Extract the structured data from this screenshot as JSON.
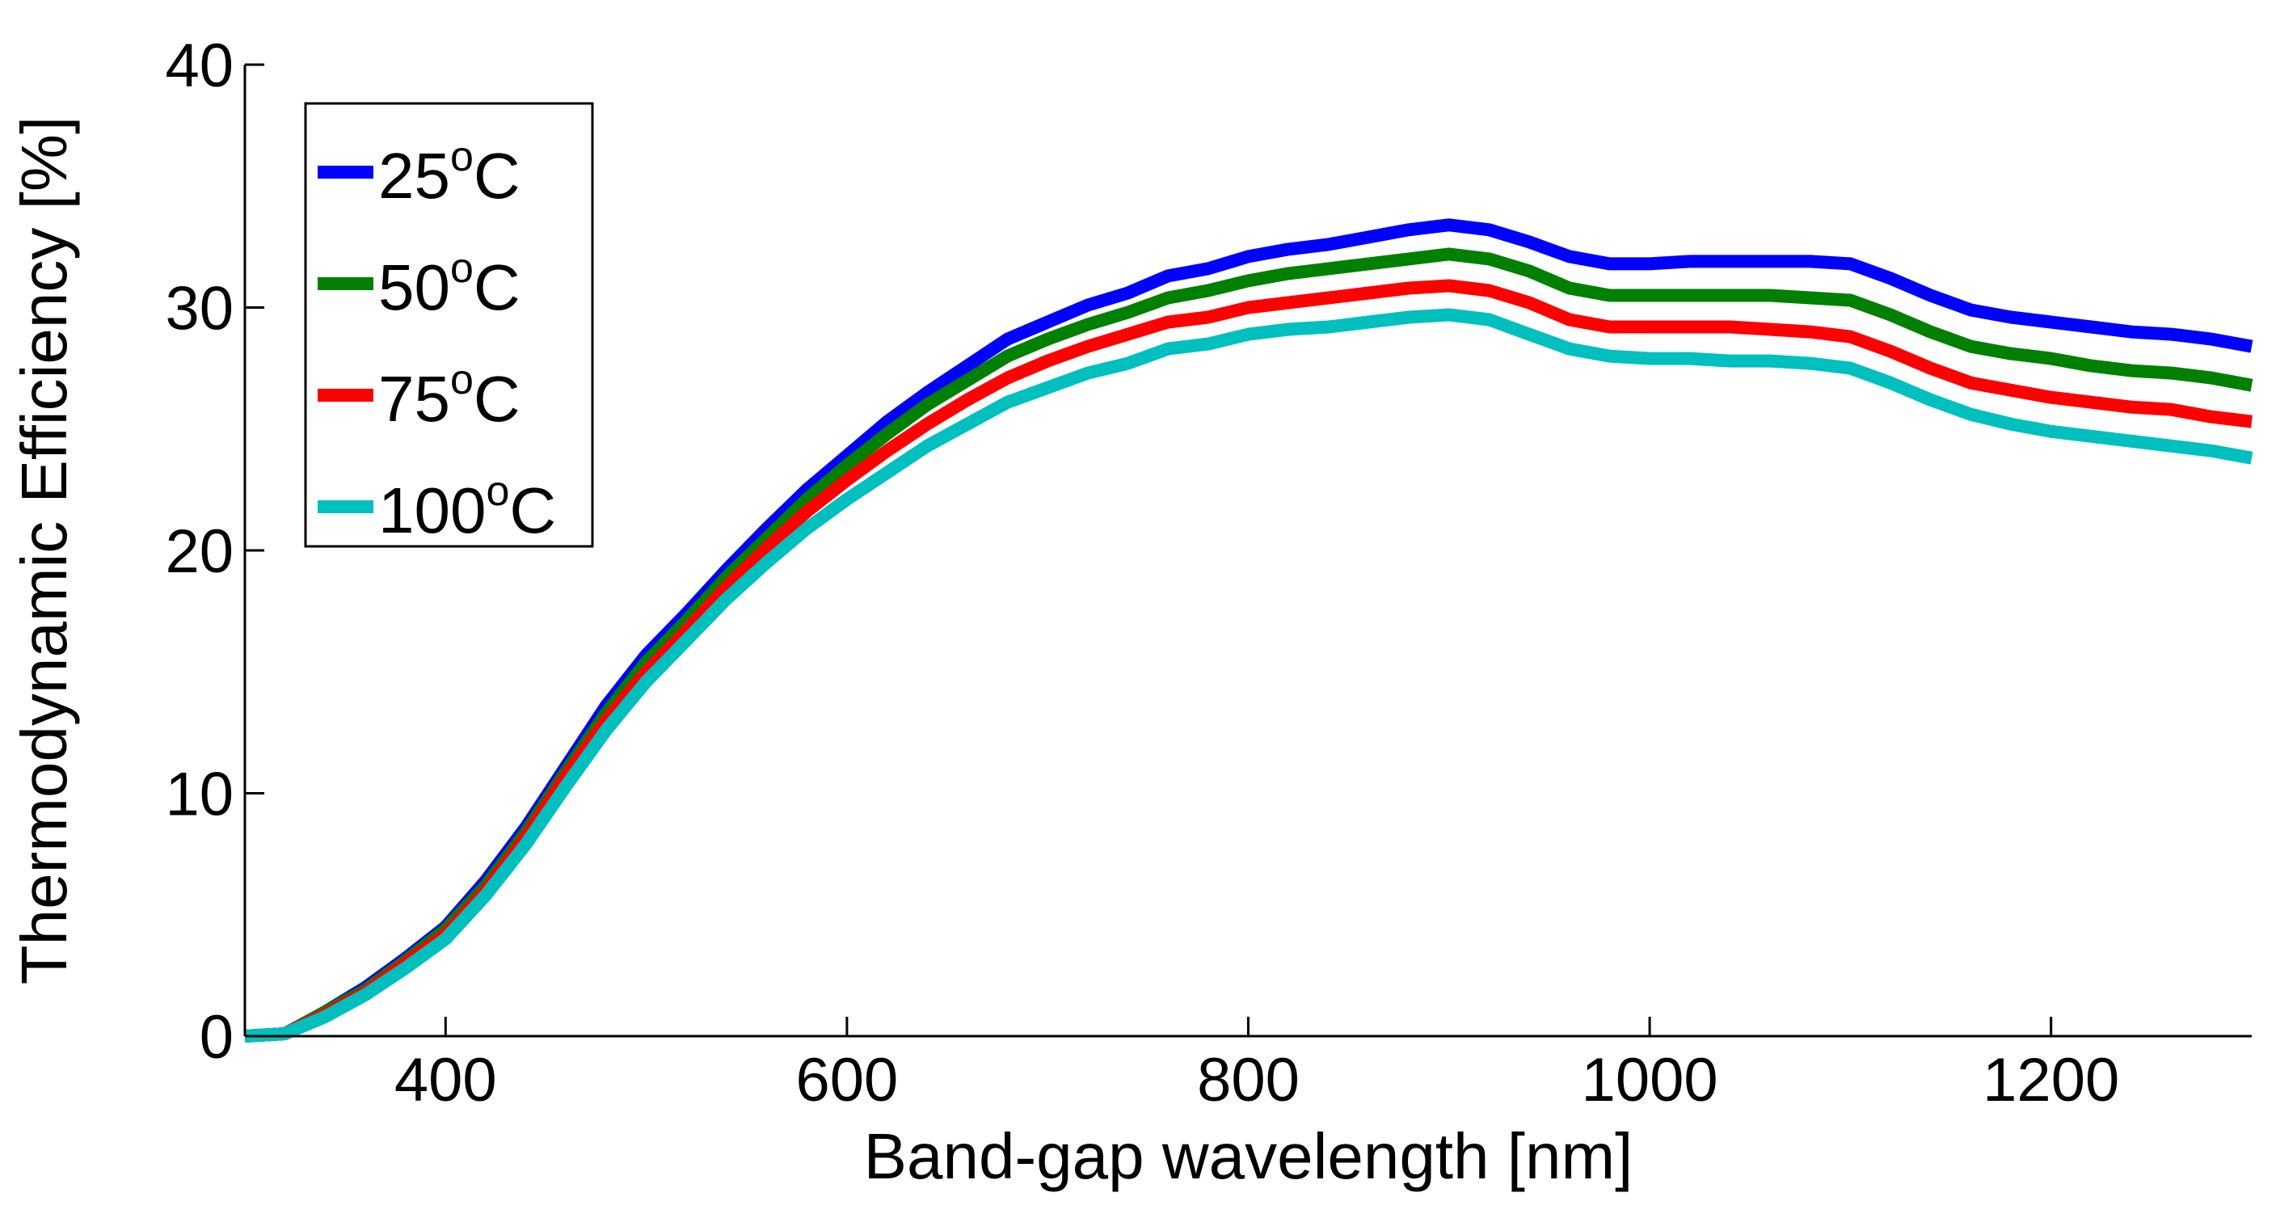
{
  "chart_data": {
    "type": "line",
    "title": "",
    "xlabel": "Band-gap wavelength [nm]",
    "ylabel": "Thermodynamic Efficiency [%]",
    "xlim": [
      300,
      1300
    ],
    "ylim": [
      0,
      40
    ],
    "xticks": [
      400,
      600,
      800,
      1000,
      1200
    ],
    "yticks": [
      0,
      10,
      20,
      30,
      40
    ],
    "grid": false,
    "legend_position": "top-left",
    "x": [
      300,
      320,
      340,
      360,
      380,
      400,
      420,
      440,
      460,
      480,
      500,
      520,
      540,
      560,
      580,
      600,
      620,
      640,
      660,
      680,
      700,
      720,
      740,
      760,
      780,
      800,
      820,
      840,
      860,
      880,
      900,
      920,
      940,
      960,
      980,
      1000,
      1020,
      1040,
      1060,
      1080,
      1100,
      1120,
      1140,
      1160,
      1180,
      1200,
      1220,
      1240,
      1260,
      1280,
      1300
    ],
    "series": [
      {
        "name": "25°C",
        "label_main": "25",
        "label_sup": "o",
        "label_unit": "C",
        "color": "#0000ff",
        "values": [
          0,
          0.1,
          1.0,
          2.0,
          3.2,
          4.5,
          6.4,
          8.6,
          11.1,
          13.6,
          15.7,
          17.4,
          19.2,
          20.9,
          22.5,
          23.9,
          25.3,
          26.5,
          27.6,
          28.7,
          29.4,
          30.1,
          30.6,
          31.3,
          31.6,
          32.1,
          32.4,
          32.6,
          32.9,
          33.2,
          33.4,
          33.2,
          32.7,
          32.1,
          31.8,
          31.8,
          31.9,
          31.9,
          31.9,
          31.9,
          31.8,
          31.2,
          30.5,
          29.9,
          29.6,
          29.4,
          29.2,
          29.0,
          28.9,
          28.7,
          28.4
        ]
      },
      {
        "name": "50°C",
        "label_main": "50",
        "label_sup": "o",
        "label_unit": "C",
        "color": "#008000",
        "values": [
          0,
          0.1,
          1.0,
          1.9,
          3.1,
          4.4,
          6.2,
          8.4,
          10.9,
          13.3,
          15.4,
          17.1,
          18.9,
          20.5,
          22.1,
          23.5,
          24.8,
          26.0,
          27.0,
          28.0,
          28.7,
          29.3,
          29.8,
          30.4,
          30.7,
          31.1,
          31.4,
          31.6,
          31.8,
          32.0,
          32.2,
          32.0,
          31.5,
          30.8,
          30.5,
          30.5,
          30.5,
          30.5,
          30.5,
          30.4,
          30.3,
          29.7,
          29.0,
          28.4,
          28.1,
          27.9,
          27.6,
          27.4,
          27.3,
          27.1,
          26.8
        ]
      },
      {
        "name": "75°C",
        "label_main": "75",
        "label_sup": "o",
        "label_unit": "C",
        "color": "#ff0000",
        "values": [
          0,
          0.1,
          0.9,
          1.8,
          3.0,
          4.2,
          6.0,
          8.2,
          10.7,
          13.0,
          15.0,
          16.7,
          18.5,
          20.1,
          21.6,
          22.9,
          24.1,
          25.2,
          26.2,
          27.1,
          27.8,
          28.4,
          28.9,
          29.4,
          29.6,
          30.0,
          30.2,
          30.4,
          30.6,
          30.8,
          30.9,
          30.7,
          30.2,
          29.5,
          29.2,
          29.2,
          29.2,
          29.2,
          29.1,
          29.0,
          28.8,
          28.2,
          27.5,
          26.9,
          26.6,
          26.3,
          26.1,
          25.9,
          25.8,
          25.5,
          25.3
        ]
      },
      {
        "name": "100°C",
        "label_main": "100",
        "label_sup": "o",
        "label_unit": "C",
        "color": "#00bfbf",
        "values": [
          0,
          0.1,
          0.8,
          1.7,
          2.8,
          4.0,
          5.8,
          7.9,
          10.3,
          12.6,
          14.6,
          16.3,
          18.0,
          19.5,
          20.9,
          22.1,
          23.2,
          24.3,
          25.2,
          26.1,
          26.7,
          27.3,
          27.7,
          28.3,
          28.5,
          28.9,
          29.1,
          29.2,
          29.4,
          29.6,
          29.7,
          29.5,
          28.9,
          28.3,
          28.0,
          27.9,
          27.9,
          27.8,
          27.8,
          27.7,
          27.5,
          26.9,
          26.2,
          25.6,
          25.2,
          24.9,
          24.7,
          24.5,
          24.3,
          24.1,
          23.8
        ]
      }
    ]
  }
}
